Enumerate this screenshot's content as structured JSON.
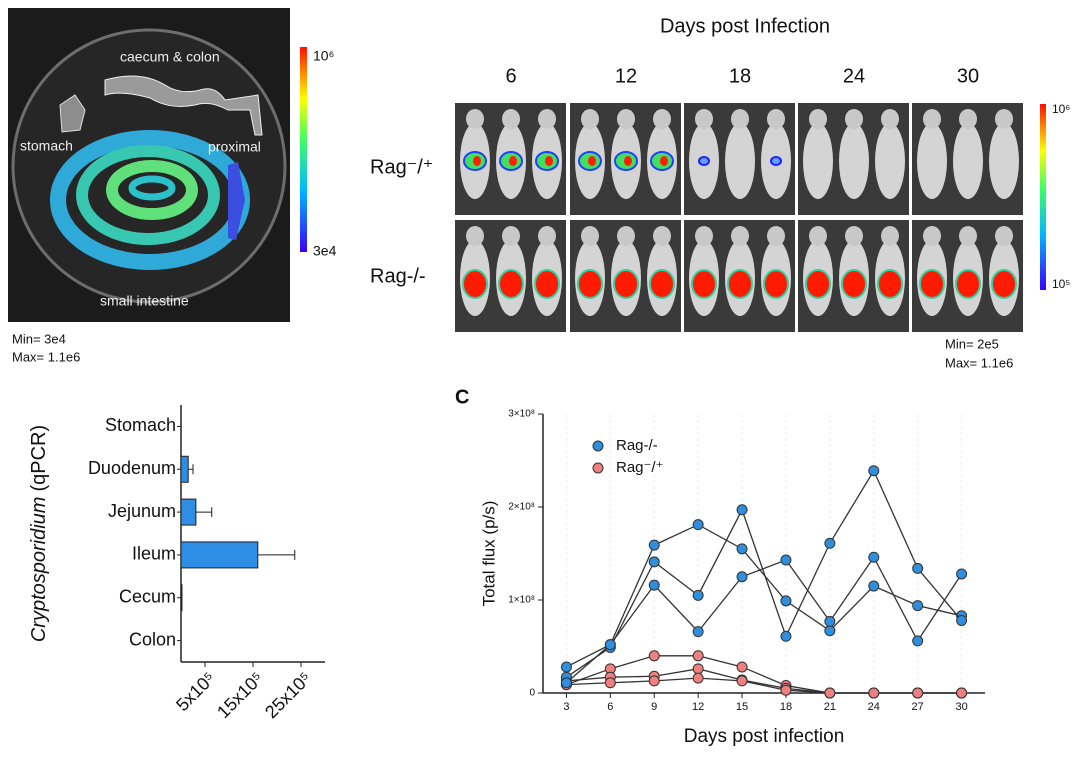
{
  "panel_a": {
    "labels": [
      "caecum & colon",
      "stomach",
      "proximal",
      "small intestine"
    ],
    "colorbar": [
      "10⁶",
      "3e4"
    ],
    "min": "Min= 3e4",
    "max": "Max= 1.1e6"
  },
  "panel_b": {
    "title": "Days post Infection",
    "days": [
      "6",
      "12",
      "18",
      "24",
      "30"
    ],
    "rows": [
      "Rag⁻/⁺",
      "Rag-/-"
    ],
    "colorbar": [
      "10⁶",
      "10⁵"
    ],
    "min": "Min= 2e5",
    "max": "Max= 1.1e6"
  },
  "chart_data": [
    {
      "type": "hbar",
      "ylabel": [
        "Cryptosporidium",
        "(qPCR)"
      ],
      "categories": [
        "Stomach",
        "Duodenum",
        "Jejunum",
        "Ileum",
        "Cecum",
        "Colon"
      ],
      "values": [
        0,
        150000,
        310000,
        1600000,
        20000,
        0
      ],
      "errors": [
        0,
        100000,
        330000,
        770000,
        0,
        0
      ],
      "color": "#2e8de4",
      "xlim": [
        0,
        3000000
      ],
      "xticks": [
        {
          "value": 500000,
          "label": "5x10⁵"
        },
        {
          "value": 1500000,
          "label": "15x10⁵"
        },
        {
          "value": 2500000,
          "label": "25x10⁵"
        }
      ]
    },
    {
      "type": "line",
      "panel_label": "C",
      "xlabel": "Days post infection",
      "ylabel": "Total flux (p/s)",
      "x": [
        3,
        6,
        9,
        12,
        15,
        18,
        21,
        24,
        27,
        30
      ],
      "xlim": [
        1.4,
        31.6
      ],
      "xticks": [
        3,
        6,
        9,
        12,
        15,
        18,
        21,
        24,
        27,
        30
      ],
      "ylim": [
        0,
        300000000
      ],
      "yticks": [
        0,
        {
          "value": 100000000,
          "label": "1×10⁸"
        },
        {
          "value": 200000000,
          "label": "2×10⁸"
        },
        {
          "value": 300000000,
          "label": "3×10⁸"
        }
      ],
      "grid": "x",
      "legend": "upper left",
      "series": [
        {
          "name": "Rag-/-",
          "color": "#2f8fdc",
          "replicates": [
            [
              28000000,
              52000000,
              159000000,
              181000000,
              155000000,
              99000000,
              67000000,
              115000000,
              94000000,
              83000000
            ],
            [
              17000000,
              49000000,
              141000000,
              105000000,
              197000000,
              61000000,
              161000000,
              239000000,
              134000000,
              78000000
            ],
            [
              11000000,
              52000000,
              116000000,
              66000000,
              125000000,
              143000000,
              77000000,
              146000000,
              56000000,
              128000000
            ]
          ]
        },
        {
          "name": "Rag⁻/⁺",
          "color": "#f08080",
          "replicates": [
            [
              9000000,
              26000000,
              40000000,
              40000000,
              28000000,
              8000000,
              0,
              0,
              0,
              0
            ],
            [
              13000000,
              17000000,
              18000000,
              26000000,
              14000000,
              5000000,
              0,
              0,
              0,
              0
            ],
            [
              9000000,
              11000000,
              13000000,
              16000000,
              13000000,
              3000000,
              0,
              0,
              0,
              0
            ]
          ]
        }
      ]
    }
  ]
}
